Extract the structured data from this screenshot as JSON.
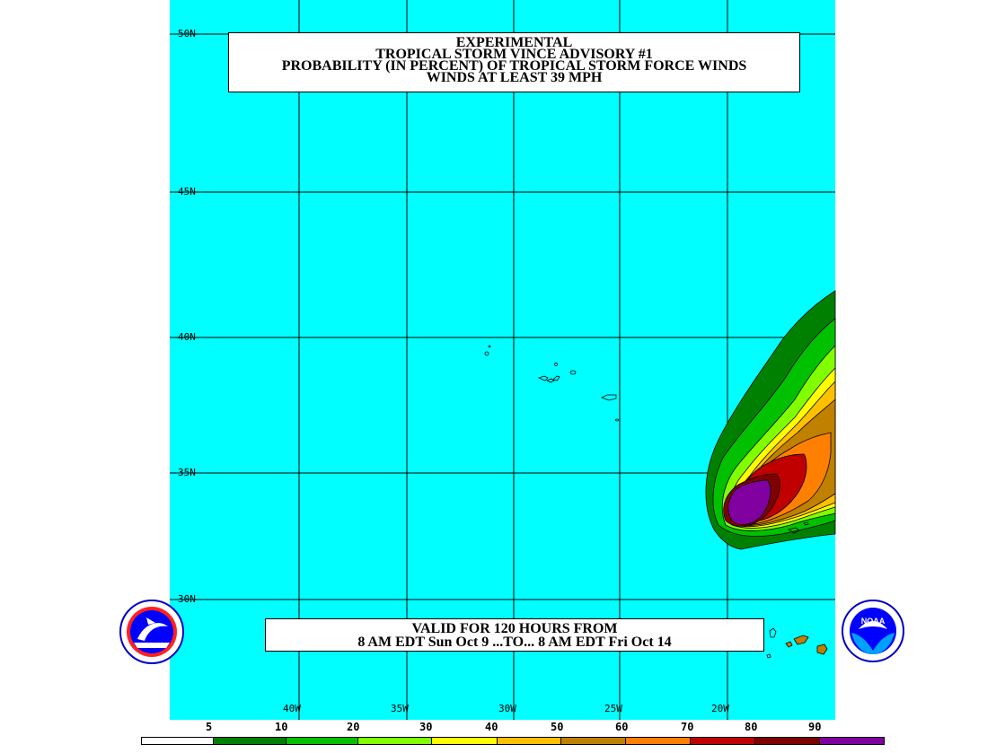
{
  "title_lines": [
    "EXPERIMENTAL",
    "TROPICAL STORM VINCE ADVISORY #1",
    "PROBABILITY (IN PERCENT) OF TROPICAL STORM FORCE WINDS",
    "WINDS AT LEAST 39 MPH"
  ],
  "valid_lines": [
    "VALID FOR 120 HOURS FROM",
    "8 AM EDT Sun Oct 9 ...TO... 8 AM EDT Fri Oct 14"
  ],
  "latitude_labels": [
    "50N",
    "45N",
    "40N",
    "35N",
    "30N"
  ],
  "longitude_labels": [
    "40W",
    "35W",
    "30W",
    "25W",
    "20W"
  ],
  "legend": {
    "values": [
      "5",
      "10",
      "20",
      "30",
      "40",
      "50",
      "60",
      "70",
      "80",
      "90"
    ],
    "colors": [
      "#ffffff",
      "#008000",
      "#00c000",
      "#80ff00",
      "#ffff00",
      "#ffc000",
      "#c08000",
      "#ff8000",
      "#c00000",
      "#800000",
      "#8000a0"
    ]
  },
  "colors": {
    "ocean": "#00ffff",
    "grid": "#000000"
  },
  "logos": [
    "nws-logo",
    "noaa-logo"
  ]
}
